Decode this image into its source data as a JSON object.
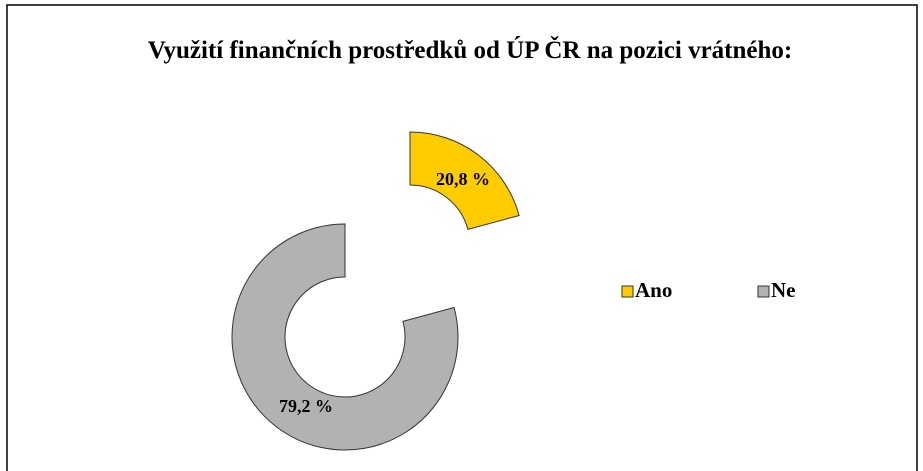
{
  "chart_data": {
    "type": "donut",
    "title": "Využití finančních prostředků od ÚP ČR  na pozici vrátného:",
    "categories": [
      "Ano",
      "Ne"
    ],
    "values": [
      20.8,
      79.2
    ],
    "value_labels": [
      "20,8 %",
      "79,2 %"
    ],
    "colors": [
      "#ffcc00",
      "#b2b2b2"
    ],
    "legend": "right"
  }
}
